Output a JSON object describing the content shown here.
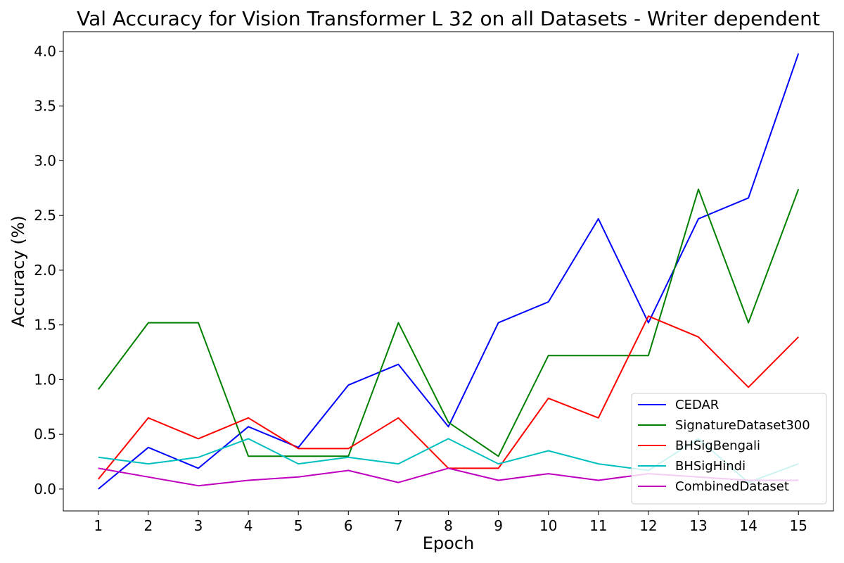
{
  "chart_data": {
    "type": "line",
    "title": "Val Accuracy for Vision Transformer L 32 on all Datasets - Writer dependent",
    "xlabel": "Epoch",
    "ylabel": "Accuracy (%)",
    "x": [
      1,
      2,
      3,
      4,
      5,
      6,
      7,
      8,
      9,
      10,
      11,
      12,
      13,
      14,
      15
    ],
    "xticks": [
      "1",
      "2",
      "3",
      "4",
      "5",
      "6",
      "7",
      "8",
      "9",
      "10",
      "11",
      "12",
      "13",
      "14",
      "15"
    ],
    "yticks": [
      "0.0",
      "0.5",
      "1.0",
      "1.5",
      "2.0",
      "2.5",
      "3.0",
      "3.5",
      "4.0"
    ],
    "ylim": [
      -0.2,
      4.18
    ],
    "xlim": [
      0.3,
      15.7
    ],
    "grid": false,
    "legend_position": "lower-right",
    "series": [
      {
        "name": "CEDAR",
        "color": "#0000ff",
        "values": [
          0.0,
          0.38,
          0.19,
          0.57,
          0.38,
          0.95,
          1.14,
          0.57,
          1.52,
          1.71,
          2.47,
          1.52,
          2.47,
          2.66,
          3.98
        ]
      },
      {
        "name": "SignatureDataset300",
        "color": "#008000",
        "values": [
          0.91,
          1.52,
          1.52,
          0.3,
          0.3,
          0.3,
          1.52,
          0.61,
          0.3,
          1.22,
          1.22,
          1.22,
          2.74,
          1.52,
          2.74
        ]
      },
      {
        "name": "BHSigBengali",
        "color": "#ff0000",
        "values": [
          0.09,
          0.65,
          0.46,
          0.65,
          0.37,
          0.37,
          0.65,
          0.19,
          0.19,
          0.83,
          0.65,
          1.58,
          1.39,
          0.93,
          1.39
        ]
      },
      {
        "name": "BHSigHindi",
        "color": "#00bfbf",
        "values": [
          0.29,
          0.23,
          0.29,
          0.46,
          0.23,
          0.29,
          0.23,
          0.46,
          0.23,
          0.35,
          0.23,
          0.17,
          0.46,
          0.06,
          0.23
        ]
      },
      {
        "name": "CombinedDataset",
        "color": "#bf00bf",
        "values": [
          0.19,
          0.11,
          0.03,
          0.08,
          0.11,
          0.17,
          0.06,
          0.19,
          0.08,
          0.14,
          0.08,
          0.14,
          0.11,
          0.08,
          0.08
        ]
      }
    ]
  }
}
